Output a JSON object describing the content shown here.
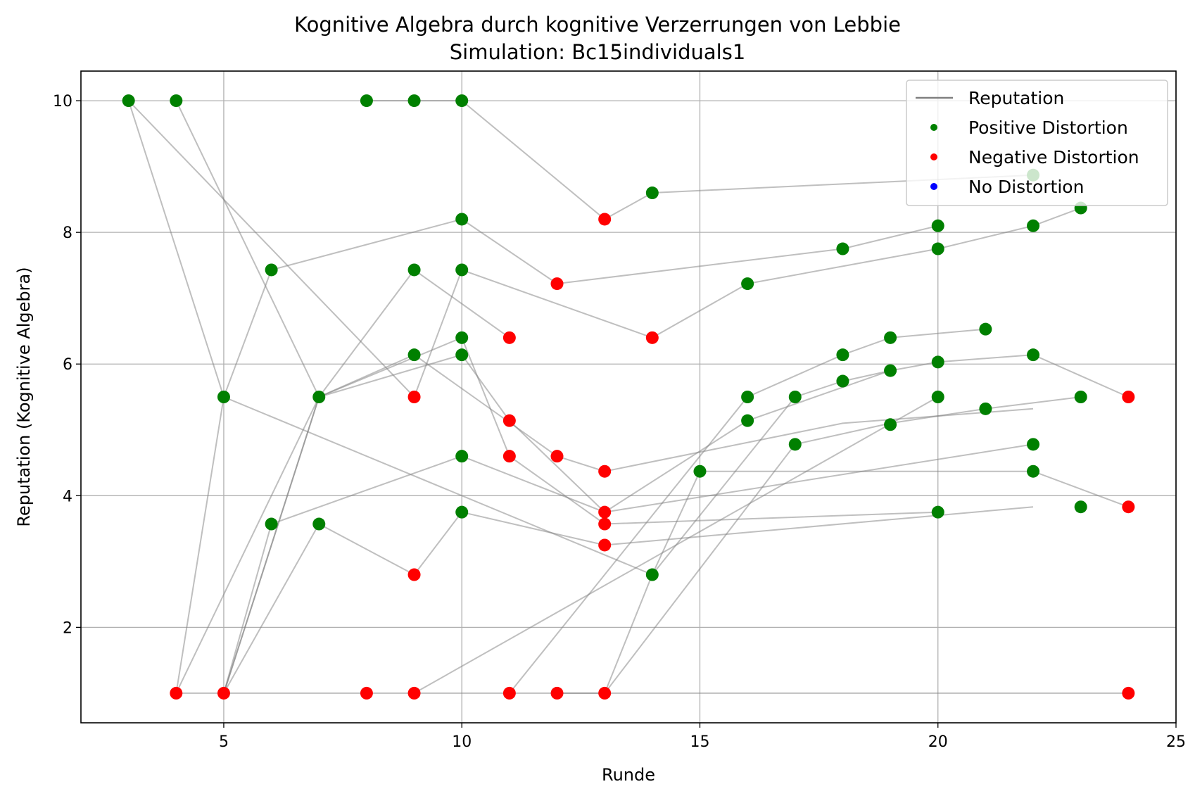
{
  "chart_data": {
    "type": "scatter",
    "title": "Kognitive Algebra durch kognitive Verzerrungen von Lebbie",
    "subtitle": "Simulation: Bc15individuals1",
    "xlabel": "Runde",
    "ylabel": "Reputation (Kognitive Algebra)",
    "xlim": [
      2,
      25
    ],
    "ylim": [
      0.55,
      10.45
    ],
    "xticks": [
      5,
      10,
      15,
      20,
      25
    ],
    "yticks": [
      2,
      4,
      6,
      8,
      10
    ],
    "grid": true,
    "legend_position": "top-right",
    "legend": [
      {
        "label": "Reputation",
        "kind": "line",
        "color": "#808080"
      },
      {
        "label": "Positive Distortion",
        "kind": "marker",
        "color": "#008000"
      },
      {
        "label": "Negative Distortion",
        "kind": "marker",
        "color": "#ff0000"
      },
      {
        "label": "No Distortion",
        "kind": "marker",
        "color": "#0000ff"
      }
    ],
    "colors": {
      "positive": "#008000",
      "negative": "#ff0000",
      "none": "#0000ff",
      "line": "#808080"
    },
    "series": [
      {
        "points": [
          [
            3,
            10
          ],
          [
            5,
            5.5
          ],
          [
            14,
            2.8
          ],
          [
            15,
            4.37
          ],
          [
            22,
            4.37
          ],
          [
            24,
            3.83
          ]
        ]
      },
      {
        "points": [
          [
            4,
            10
          ],
          [
            7,
            5.5
          ],
          [
            10,
            6.4
          ],
          [
            11,
            4.6
          ],
          [
            13,
            3.57
          ],
          [
            20,
            3.75
          ]
        ]
      },
      {
        "points": [
          [
            8,
            10
          ],
          [
            9,
            10
          ],
          [
            10,
            10
          ],
          [
            13,
            8.2
          ],
          [
            14,
            8.6
          ],
          [
            22,
            8.87
          ]
        ]
      },
      {
        "points": [
          [
            3,
            10
          ],
          [
            9,
            5.5
          ],
          [
            10,
            7.43
          ],
          [
            14,
            6.4
          ],
          [
            16,
            7.22
          ],
          [
            20,
            7.75
          ],
          [
            22,
            8.1
          ],
          [
            23,
            8.37
          ]
        ]
      },
      {
        "points": [
          [
            4,
            1
          ],
          [
            5,
            5.5
          ],
          [
            6,
            7.43
          ],
          [
            10,
            8.2
          ],
          [
            12,
            7.22
          ],
          [
            18,
            7.75
          ],
          [
            20,
            8.1
          ]
        ]
      },
      {
        "points": [
          [
            5,
            1
          ],
          [
            7,
            5.5
          ],
          [
            9,
            7.43
          ],
          [
            11,
            6.4
          ]
        ]
      },
      {
        "points": [
          [
            4,
            1
          ],
          [
            8,
            1
          ],
          [
            9,
            1
          ],
          [
            20,
            5.5
          ]
        ]
      },
      {
        "points": [
          [
            5,
            1
          ],
          [
            6,
            3.57
          ],
          [
            10,
            4.6
          ],
          [
            13,
            3.75
          ],
          [
            22,
            4.78
          ]
        ]
      },
      {
        "points": [
          [
            5,
            1
          ],
          [
            7,
            5.5
          ],
          [
            9,
            6.14
          ],
          [
            12,
            4.6
          ],
          [
            13,
            4.37
          ],
          [
            18,
            5.1
          ],
          [
            22,
            5.32
          ]
        ]
      },
      {
        "points": [
          [
            5,
            1
          ],
          [
            7,
            3.57
          ],
          [
            9,
            2.8
          ],
          [
            10,
            3.75
          ],
          [
            13,
            3.25
          ],
          [
            22,
            3.83
          ]
        ]
      },
      {
        "points": [
          [
            4,
            1
          ],
          [
            7,
            5.5
          ],
          [
            10,
            6.14
          ],
          [
            11,
            5.14
          ],
          [
            13,
            3.75
          ],
          [
            16,
            5.14
          ],
          [
            19,
            5.9
          ],
          [
            20,
            6.03
          ],
          [
            22,
            6.14
          ],
          [
            24,
            5.5
          ]
        ]
      },
      {
        "points": [
          [
            9,
            1
          ],
          [
            13,
            1
          ],
          [
            14,
            2.8
          ]
        ]
      },
      {
        "points": [
          [
            11,
            1
          ],
          [
            16,
            5.5
          ],
          [
            18,
            6.14
          ],
          [
            19,
            6.4
          ],
          [
            21,
            6.53
          ]
        ]
      },
      {
        "points": [
          [
            12,
            1
          ],
          [
            24,
            1
          ]
        ]
      },
      {
        "points": [
          [
            13,
            1
          ],
          [
            17,
            4.78
          ],
          [
            19,
            5.1
          ],
          [
            21,
            5.32
          ],
          [
            23,
            5.5
          ]
        ]
      },
      {
        "points": [
          [
            14,
            2.8
          ],
          [
            17,
            5.5
          ],
          [
            18,
            5.74
          ],
          [
            19,
            5.9
          ]
        ]
      }
    ],
    "markers": {
      "positive": [
        [
          3,
          10
        ],
        [
          4,
          10
        ],
        [
          8,
          10
        ],
        [
          9,
          10
        ],
        [
          10,
          10
        ],
        [
          14,
          8.6
        ],
        [
          22,
          8.87
        ],
        [
          23,
          8.37
        ],
        [
          22,
          8.1
        ],
        [
          20,
          8.1
        ],
        [
          20,
          7.75
        ],
        [
          18,
          7.75
        ],
        [
          10,
          8.2
        ],
        [
          6,
          7.43
        ],
        [
          9,
          7.43
        ],
        [
          10,
          7.43
        ],
        [
          16,
          7.22
        ],
        [
          10,
          6.4
        ],
        [
          9,
          6.14
        ],
        [
          10,
          6.14
        ],
        [
          21,
          6.53
        ],
        [
          19,
          6.4
        ],
        [
          18,
          6.14
        ],
        [
          22,
          6.14
        ],
        [
          20,
          6.03
        ],
        [
          19,
          5.9
        ],
        [
          18,
          5.74
        ],
        [
          5,
          5.5
        ],
        [
          7,
          5.5
        ],
        [
          16,
          5.5
        ],
        [
          17,
          5.5
        ],
        [
          20,
          5.5
        ],
        [
          23,
          5.5
        ],
        [
          16,
          5.14
        ],
        [
          19,
          5.08
        ],
        [
          21,
          5.32
        ],
        [
          10,
          4.6
        ],
        [
          17,
          4.78
        ],
        [
          22,
          4.78
        ],
        [
          15,
          4.37
        ],
        [
          22,
          4.37
        ],
        [
          23,
          3.83
        ],
        [
          20,
          3.75
        ],
        [
          10,
          3.75
        ],
        [
          6,
          3.57
        ],
        [
          7,
          3.57
        ],
        [
          14,
          2.8
        ]
      ],
      "negative": [
        [
          13,
          8.2
        ],
        [
          12,
          7.22
        ],
        [
          14,
          6.4
        ],
        [
          11,
          6.4
        ],
        [
          9,
          5.5
        ],
        [
          11,
          5.14
        ],
        [
          11,
          4.6
        ],
        [
          12,
          4.6
        ],
        [
          13,
          4.37
        ],
        [
          13,
          3.75
        ],
        [
          13,
          3.57
        ],
        [
          13,
          3.25
        ],
        [
          9,
          2.8
        ],
        [
          24,
          5.5
        ],
        [
          24,
          3.83
        ],
        [
          4,
          1
        ],
        [
          5,
          1
        ],
        [
          8,
          1
        ],
        [
          9,
          1
        ],
        [
          11,
          1
        ],
        [
          12,
          1
        ],
        [
          13,
          1
        ],
        [
          24,
          1
        ]
      ],
      "none": []
    }
  }
}
